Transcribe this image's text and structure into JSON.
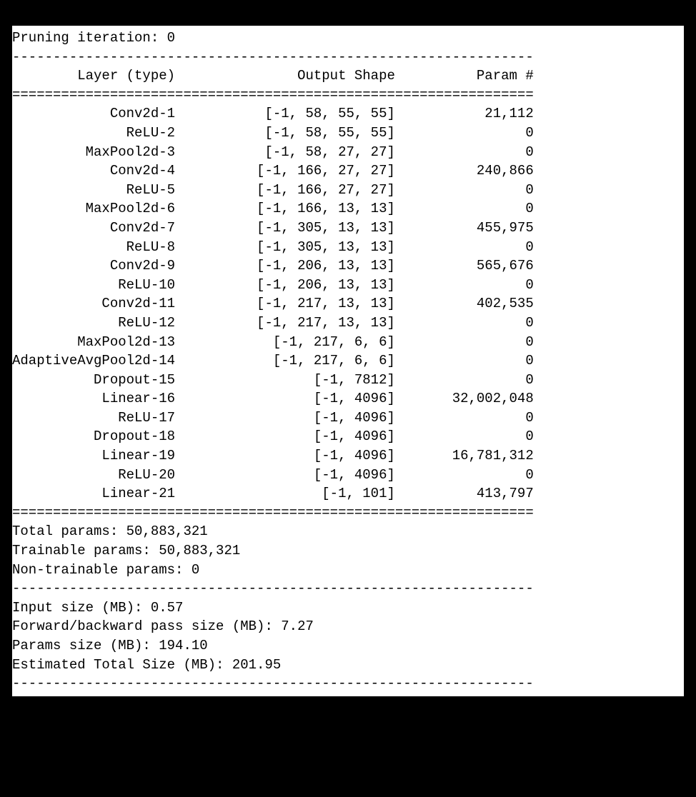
{
  "header_line": "Pruning iteration: 0",
  "columns": {
    "layer": "Layer (type)",
    "shape": "Output Shape",
    "param": "Param #"
  },
  "rows": [
    {
      "layer": "Conv2d-1",
      "shape": "[-1, 58, 55, 55]",
      "param": "21,112"
    },
    {
      "layer": "ReLU-2",
      "shape": "[-1, 58, 55, 55]",
      "param": "0"
    },
    {
      "layer": "MaxPool2d-3",
      "shape": "[-1, 58, 27, 27]",
      "param": "0"
    },
    {
      "layer": "Conv2d-4",
      "shape": "[-1, 166, 27, 27]",
      "param": "240,866"
    },
    {
      "layer": "ReLU-5",
      "shape": "[-1, 166, 27, 27]",
      "param": "0"
    },
    {
      "layer": "MaxPool2d-6",
      "shape": "[-1, 166, 13, 13]",
      "param": "0"
    },
    {
      "layer": "Conv2d-7",
      "shape": "[-1, 305, 13, 13]",
      "param": "455,975"
    },
    {
      "layer": "ReLU-8",
      "shape": "[-1, 305, 13, 13]",
      "param": "0"
    },
    {
      "layer": "Conv2d-9",
      "shape": "[-1, 206, 13, 13]",
      "param": "565,676"
    },
    {
      "layer": "ReLU-10",
      "shape": "[-1, 206, 13, 13]",
      "param": "0"
    },
    {
      "layer": "Conv2d-11",
      "shape": "[-1, 217, 13, 13]",
      "param": "402,535"
    },
    {
      "layer": "ReLU-12",
      "shape": "[-1, 217, 13, 13]",
      "param": "0"
    },
    {
      "layer": "MaxPool2d-13",
      "shape": "[-1, 217, 6, 6]",
      "param": "0"
    },
    {
      "layer": "AdaptiveAvgPool2d-14",
      "shape": "[-1, 217, 6, 6]",
      "param": "0"
    },
    {
      "layer": "Dropout-15",
      "shape": "[-1, 7812]",
      "param": "0"
    },
    {
      "layer": "Linear-16",
      "shape": "[-1, 4096]",
      "param": "32,002,048"
    },
    {
      "layer": "ReLU-17",
      "shape": "[-1, 4096]",
      "param": "0"
    },
    {
      "layer": "Dropout-18",
      "shape": "[-1, 4096]",
      "param": "0"
    },
    {
      "layer": "Linear-19",
      "shape": "[-1, 4096]",
      "param": "16,781,312"
    },
    {
      "layer": "ReLU-20",
      "shape": "[-1, 4096]",
      "param": "0"
    },
    {
      "layer": "Linear-21",
      "shape": "[-1, 101]",
      "param": "413,797"
    }
  ],
  "totals": {
    "total_params": "Total params: 50,883,321",
    "trainable_params": "Trainable params: 50,883,321",
    "nontrainable_params": "Non-trainable params: 0"
  },
  "sizes": {
    "input_size": "Input size (MB): 0.57",
    "fwd_bwd": "Forward/backward pass size (MB): 7.27",
    "params_size": "Params size (MB): 194.10",
    "est_total": "Estimated Total Size (MB): 201.95"
  },
  "layout": {
    "col1_width": 20,
    "col2_width": 27,
    "col3_width": 17,
    "rule_width": 64,
    "dash_char": "-",
    "eq_char": "="
  }
}
